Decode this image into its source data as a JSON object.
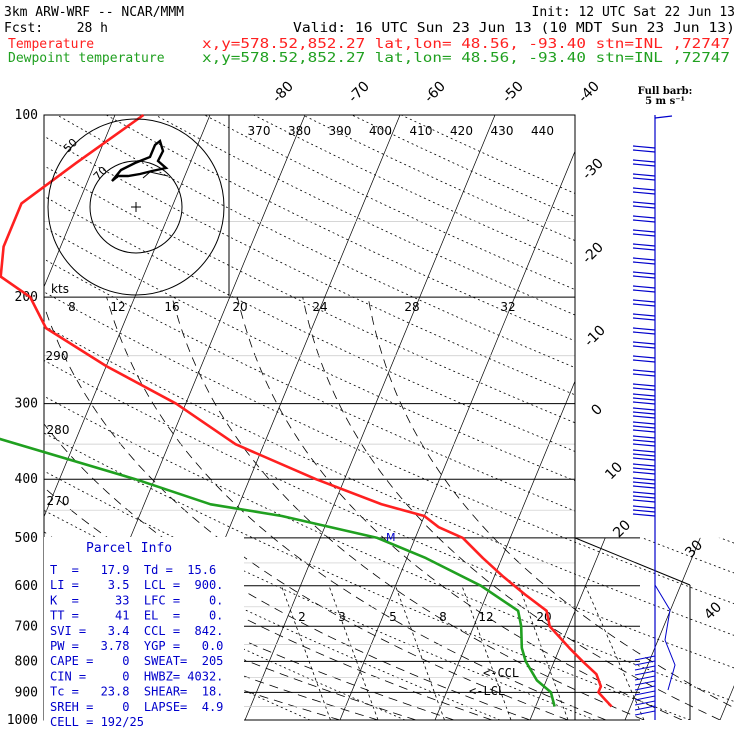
{
  "header": {
    "model": "3km ARW-WRF -- NCAR/MMM",
    "init": "Init: 12 UTC Sat 22 Jun 13",
    "fcst_label": "Fcst:",
    "fcst_value": "28 h",
    "valid": "Valid: 16 UTC Sun 23 Jun 13 (10 MDT Sun 23 Jun 13)",
    "temp_label": "Temperature",
    "dew_label": "Dewpoint temperature",
    "location": "x,y=578.52,852.27   lat,lon= 48.56, -93.40   stn=INL ,72747"
  },
  "wind_legend": {
    "title": "Full barb:",
    "value": "5 m s⁻¹"
  },
  "hodograph": {
    "units": "kts",
    "speed_ticks": [
      "8",
      "12",
      "16",
      "20",
      "24",
      "28",
      "32"
    ],
    "ring_labels": [
      "50",
      "70"
    ]
  },
  "colors": {
    "temperature": "#ff2020",
    "dewpoint": "#20a020",
    "parcel_text": "#0000cc",
    "wind": "#0000cc"
  },
  "chart_data": {
    "type": "line",
    "title": "",
    "xlabel": "",
    "ylabel": "",
    "pressure_ticks": [
      "100",
      "200",
      "300",
      "400",
      "500",
      "600",
      "700",
      "800",
      "900",
      "1000"
    ],
    "temperature_ticks": [
      "-80",
      "-70",
      "-60",
      "-50",
      "-40",
      "-30",
      "-20",
      "-10",
      "0",
      "10",
      "20",
      "30",
      "40"
    ],
    "potential_temp_labels": [
      "370",
      "380",
      "390",
      "400",
      "410",
      "420",
      "430",
      "440"
    ],
    "dry_adiabat_labels": [
      "290",
      "280",
      "270"
    ],
    "mixing_ratio_labels": [
      "2",
      "3",
      "5",
      "8",
      "12",
      "20"
    ],
    "ylim": [
      1000,
      100
    ],
    "series": [
      {
        "name": "Temperature",
        "color": "#ff2020",
        "points": [
          [
            100,
            -57
          ],
          [
            120,
            -62
          ],
          [
            140,
            -66
          ],
          [
            165,
            -66
          ],
          [
            185,
            -65
          ],
          [
            200,
            -61
          ],
          [
            225,
            -58
          ],
          [
            260,
            -50
          ],
          [
            300,
            -41
          ],
          [
            350,
            -33
          ],
          [
            400,
            -23
          ],
          [
            440,
            -15
          ],
          [
            460,
            -10
          ],
          [
            480,
            -8
          ],
          [
            500,
            -5
          ],
          [
            540,
            -2
          ],
          [
            580,
            1
          ],
          [
            620,
            4
          ],
          [
            660,
            7
          ],
          [
            700,
            8
          ],
          [
            760,
            11
          ],
          [
            800,
            13
          ],
          [
            840,
            15
          ],
          [
            880,
            16
          ],
          [
            900,
            16
          ],
          [
            925,
            17
          ],
          [
            950,
            18
          ]
        ]
      },
      {
        "name": "Dewpoint temperature",
        "color": "#20a020",
        "points": [
          [
            100,
            -84
          ],
          [
            120,
            -81
          ],
          [
            135,
            -79
          ],
          [
            150,
            -86
          ],
          [
            165,
            -89
          ],
          [
            185,
            -95
          ],
          [
            200,
            -95
          ],
          [
            230,
            -91
          ],
          [
            280,
            -74
          ],
          [
            340,
            -59
          ],
          [
            400,
            -42
          ],
          [
            440,
            -33
          ],
          [
            460,
            -25
          ],
          [
            500,
            -14
          ],
          [
            540,
            -8
          ],
          [
            600,
            -1
          ],
          [
            660,
            4
          ],
          [
            700,
            5
          ],
          [
            760,
            6
          ],
          [
            800,
            7
          ],
          [
            860,
            9
          ],
          [
            900,
            11
          ],
          [
            950,
            12
          ]
        ]
      }
    ]
  },
  "annotations": {
    "ccl": "<-CCL",
    "lcl": "<-LCL",
    "level_marker": "M"
  },
  "parcel_info": {
    "title": "Parcel Info",
    "rows": [
      "T  =   17.9  Td =  15.6",
      "LI =    3.5  LCL =  900.",
      "K  =     33  LFC =    0.",
      "TT =     41  EL  =    0.",
      "SVI =   3.4  CCL =  842.",
      "PW =   3.78  YGP =   0.0",
      "CAPE =    0  SWEAT=  205",
      "CIN =     0  HWBZ= 4032.",
      "Tc =   23.8  SHEAR=  18.",
      "SREH =    0  LAPSE=  4.9",
      "CELL = 192/25"
    ]
  }
}
